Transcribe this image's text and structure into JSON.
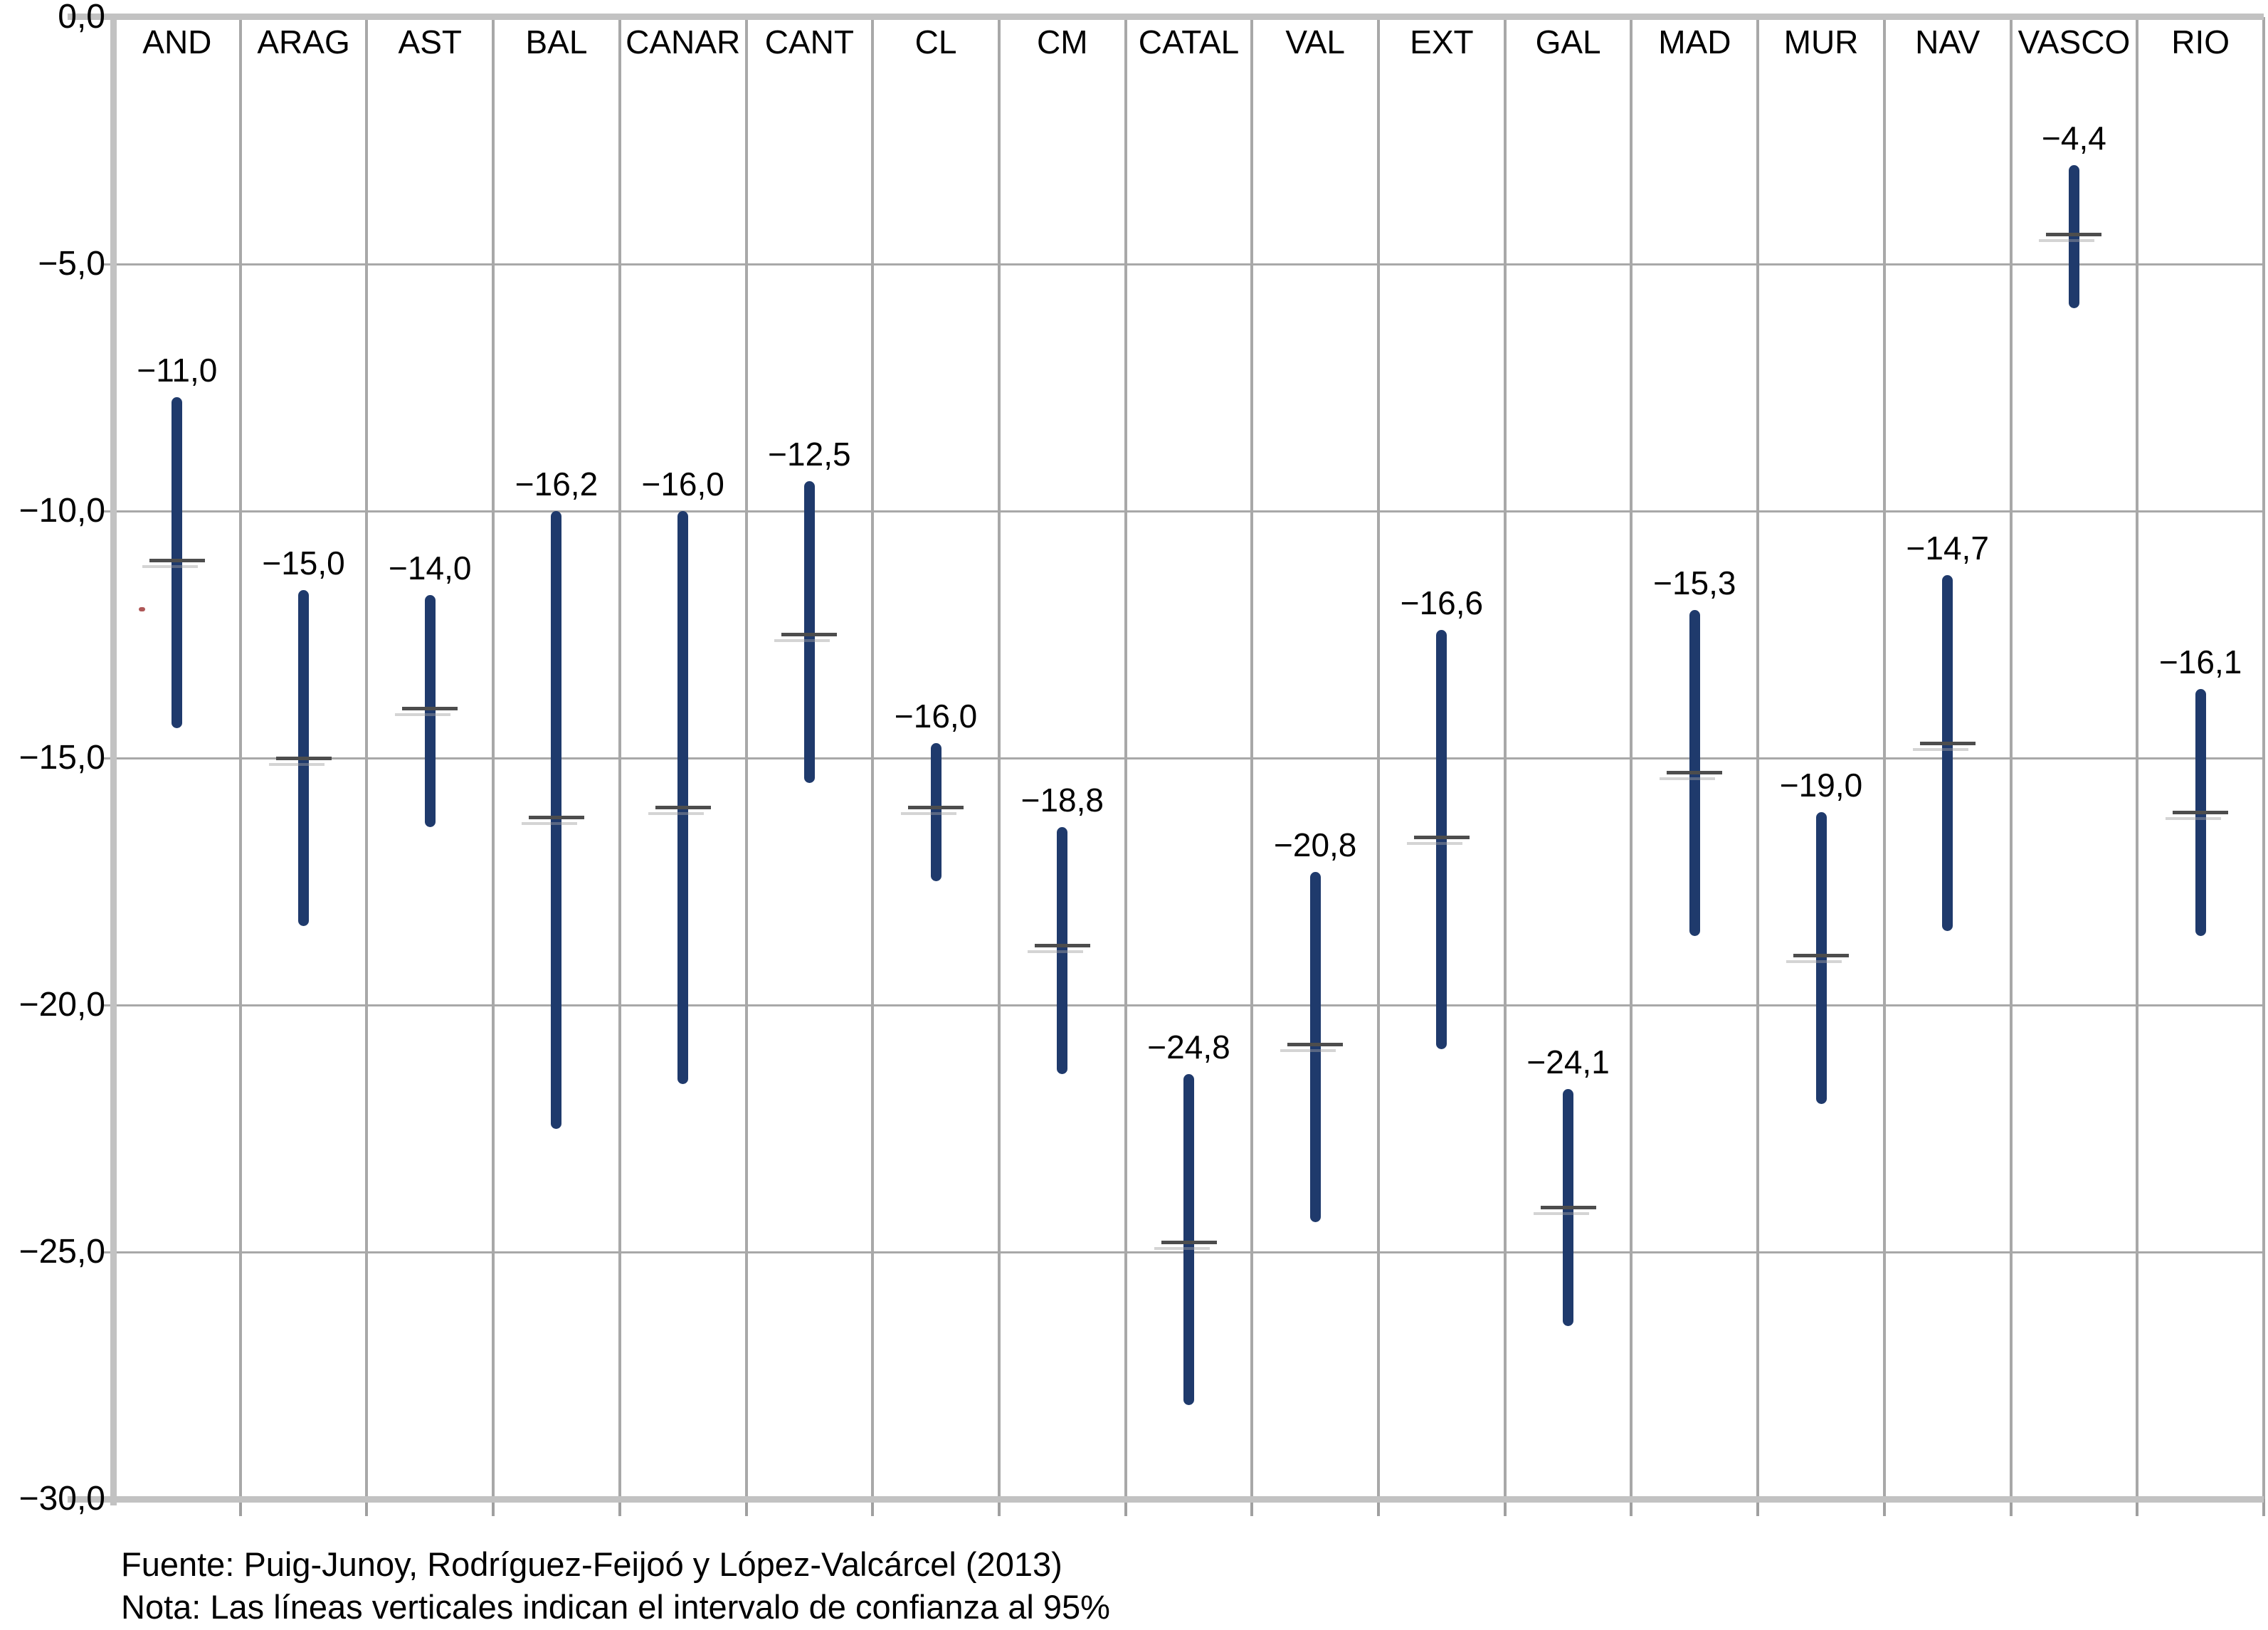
{
  "chart_data": {
    "type": "error-bar",
    "title": "",
    "xlabel": "",
    "ylabel": "",
    "grid": true,
    "legend": "none",
    "y_axis": {
      "min": -30,
      "max": 0,
      "tick_step": 5,
      "tick_labels": [
        "0,0",
        "−5,0",
        "−10,0",
        "−15,0",
        "−20,0",
        "−25,0",
        "−30,0"
      ],
      "tick_values": [
        0,
        -5,
        -10,
        -15,
        -20,
        -25,
        -30
      ]
    },
    "regions": [
      {
        "label": "AND",
        "value_label": "−11,0",
        "mean": -11.0,
        "ci_high": -7.7,
        "ci_low": -14.4
      },
      {
        "label": "ARAG",
        "value_label": "−15,0",
        "mean": -15.0,
        "ci_high": -11.6,
        "ci_low": -18.4
      },
      {
        "label": "AST",
        "value_label": "−14,0",
        "mean": -14.0,
        "ci_high": -11.7,
        "ci_low": -16.4
      },
      {
        "label": "BAL",
        "value_label": "−16,2",
        "mean": -16.2,
        "ci_high": -10.0,
        "ci_low": -22.5
      },
      {
        "label": "CANAR",
        "value_label": "−16,0",
        "mean": -16.0,
        "ci_high": -10.0,
        "ci_low": -21.6
      },
      {
        "label": "CANT",
        "value_label": "−12,5",
        "mean": -12.5,
        "ci_high": -9.4,
        "ci_low": -15.5
      },
      {
        "label": "CL",
        "value_label": "−16,0",
        "mean": -16.0,
        "ci_high": -14.7,
        "ci_low": -17.5
      },
      {
        "label": "CM",
        "value_label": "−18,8",
        "mean": -18.8,
        "ci_high": -16.4,
        "ci_low": -21.4
      },
      {
        "label": "CATAL",
        "value_label": "−24,8",
        "mean": -24.8,
        "ci_high": -21.4,
        "ci_low": -28.1
      },
      {
        "label": "VAL",
        "value_label": "−20,8",
        "mean": -20.8,
        "ci_high": -17.3,
        "ci_low": -24.4
      },
      {
        "label": "EXT",
        "value_label": "−16,6",
        "mean": -16.6,
        "ci_high": -12.4,
        "ci_low": -20.9
      },
      {
        "label": "GAL",
        "value_label": "−24,1",
        "mean": -24.1,
        "ci_high": -21.7,
        "ci_low": -26.5
      },
      {
        "label": "MAD",
        "value_label": "−15,3",
        "mean": -15.3,
        "ci_high": -12.0,
        "ci_low": -18.6
      },
      {
        "label": "MUR",
        "value_label": "−19,0",
        "mean": -19.0,
        "ci_high": -16.1,
        "ci_low": -22.0
      },
      {
        "label": "NAV",
        "value_label": "−14,7",
        "mean": -14.7,
        "ci_high": -11.3,
        "ci_low": -18.5
      },
      {
        "label": "VASCO",
        "value_label": "−4,4",
        "mean": -4.4,
        "ci_high": -3.0,
        "ci_low": -5.9
      },
      {
        "label": "RIO",
        "value_label": "−16,1",
        "mean": -16.1,
        "ci_high": -13.6,
        "ci_low": -18.6
      }
    ],
    "colors": {
      "bar": "#1f3a6c",
      "mean_tick": "#4d4d4d",
      "gridline": "#a8a8a8",
      "axis_border": "#c2c2c2",
      "text": "#000000",
      "background": "#ffffff",
      "artifact_dot": "#a03a3a"
    }
  },
  "footer": {
    "source": "Fuente: Puig-Junoy, Rodríguez-Feijoó y López-Valcárcel (2013)",
    "note": "Nota: Las líneas verticales indican el intervalo de confianza al 95%"
  }
}
